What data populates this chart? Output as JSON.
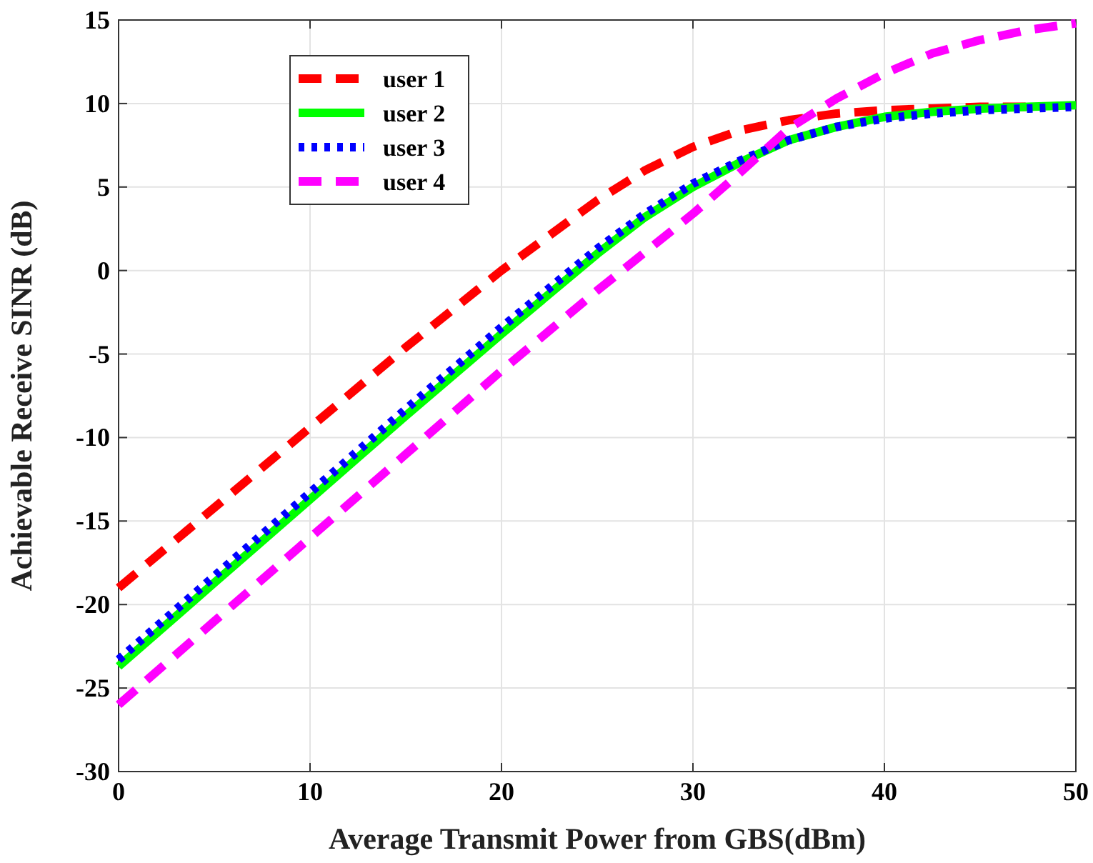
{
  "chart_data": {
    "type": "line",
    "xlabel": "Average Transmit Power from GBS(dBm)",
    "ylabel": "Achievable Receive SINR (dB)",
    "x": [
      0,
      5,
      10,
      15,
      20,
      25,
      27.5,
      30,
      32.5,
      35,
      37.5,
      40,
      42.5,
      45,
      47.5,
      50
    ],
    "series": [
      {
        "name": "user 1",
        "color": "#ff0000",
        "line_style": "dashed",
        "values": [
          -19,
          -14.2,
          -9.4,
          -4.6,
          0,
          4.2,
          6,
          7.4,
          8.4,
          9,
          9.4,
          9.6,
          9.7,
          9.8,
          9.8,
          null
        ]
      },
      {
        "name": "user 2",
        "color": "#00ff00",
        "line_style": "solid",
        "values": [
          -23.7,
          -18.7,
          -13.7,
          -8.7,
          -3.8,
          1,
          3.2,
          5,
          6.5,
          7.8,
          8.6,
          9.2,
          9.5,
          9.7,
          9.8,
          9.9
        ]
      },
      {
        "name": "user 3",
        "color": "#0000ff",
        "line_style": "dotted",
        "values": [
          -23.3,
          -18.3,
          -13.3,
          -8.3,
          -3.4,
          1.3,
          3.4,
          5.2,
          6.6,
          7.8,
          8.6,
          9.1,
          9.4,
          9.6,
          9.7,
          9.8
        ]
      },
      {
        "name": "user 4",
        "color": "#ff00ff",
        "line_style": "dashed",
        "values": [
          -26,
          -21,
          -16,
          -11,
          -6,
          -1.2,
          1.1,
          3.4,
          5.9,
          8.5,
          10.3,
          11.8,
          13,
          13.8,
          14.4,
          14.8
        ]
      }
    ],
    "xlim": [
      0,
      50
    ],
    "xticks": [
      0,
      10,
      20,
      30,
      40,
      50
    ],
    "ylim": [
      -30,
      15
    ],
    "yticks": [
      -30,
      -25,
      -20,
      -15,
      -10,
      -5,
      0,
      5,
      10,
      15
    ],
    "grid": true,
    "legend": "top left"
  }
}
